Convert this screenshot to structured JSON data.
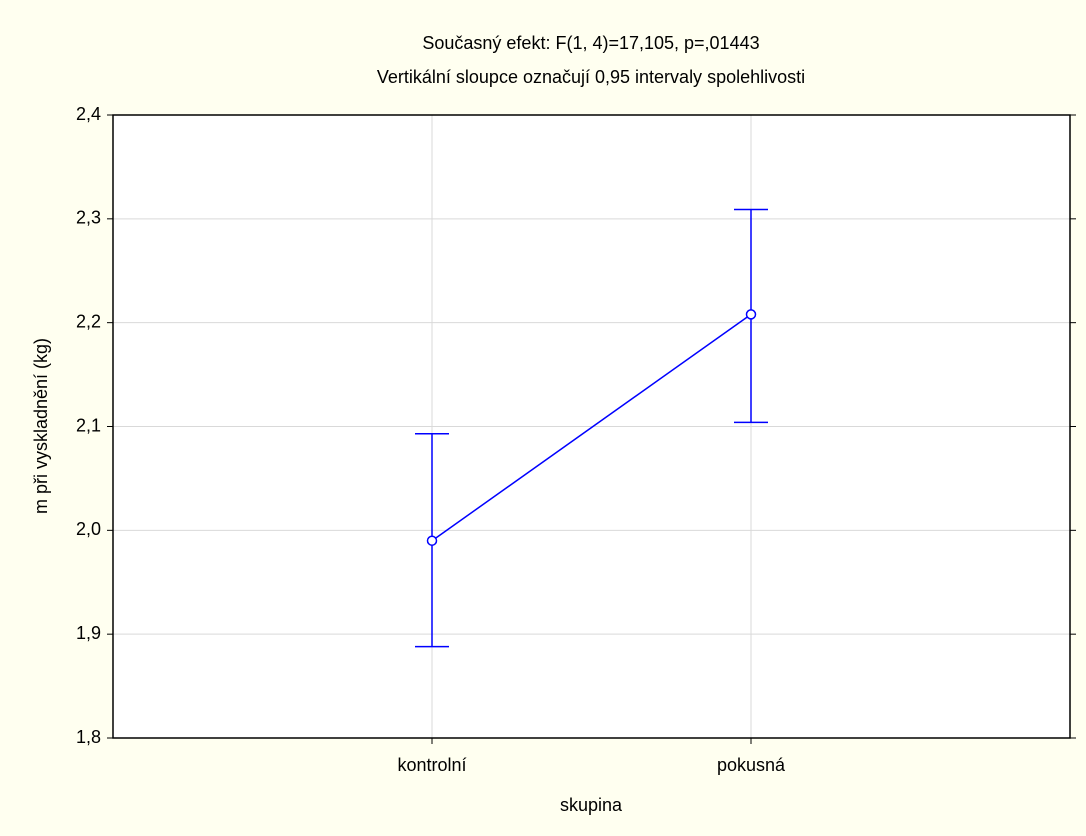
{
  "chart_data": {
    "type": "line",
    "title": "Současný efekt: F(1, 4)=17,105, p=,01443",
    "subtitle": "Vertikální sloupce označují 0,95 intervaly spolehlivosti",
    "x_label": "skupina",
    "y_label": "m při vyskladnění (kg)",
    "categories": [
      "kontrolní",
      "pokusná"
    ],
    "series": [
      {
        "color": "#0000ff",
        "values": [
          1.99,
          2.208
        ],
        "lower": [
          1.888,
          2.104
        ],
        "upper": [
          2.093,
          2.309
        ]
      }
    ],
    "ylim": [
      1.8,
      2.4
    ],
    "yticks": [
      {
        "value": 1.8,
        "label": "1,8"
      },
      {
        "value": 1.9,
        "label": "1,9"
      },
      {
        "value": 2.0,
        "label": "2,0"
      },
      {
        "value": 2.1,
        "label": "2,1"
      },
      {
        "value": 2.2,
        "label": "2,2"
      },
      {
        "value": 2.3,
        "label": "2,3"
      },
      {
        "value": 2.4,
        "label": "2,4"
      }
    ],
    "grid": true
  }
}
